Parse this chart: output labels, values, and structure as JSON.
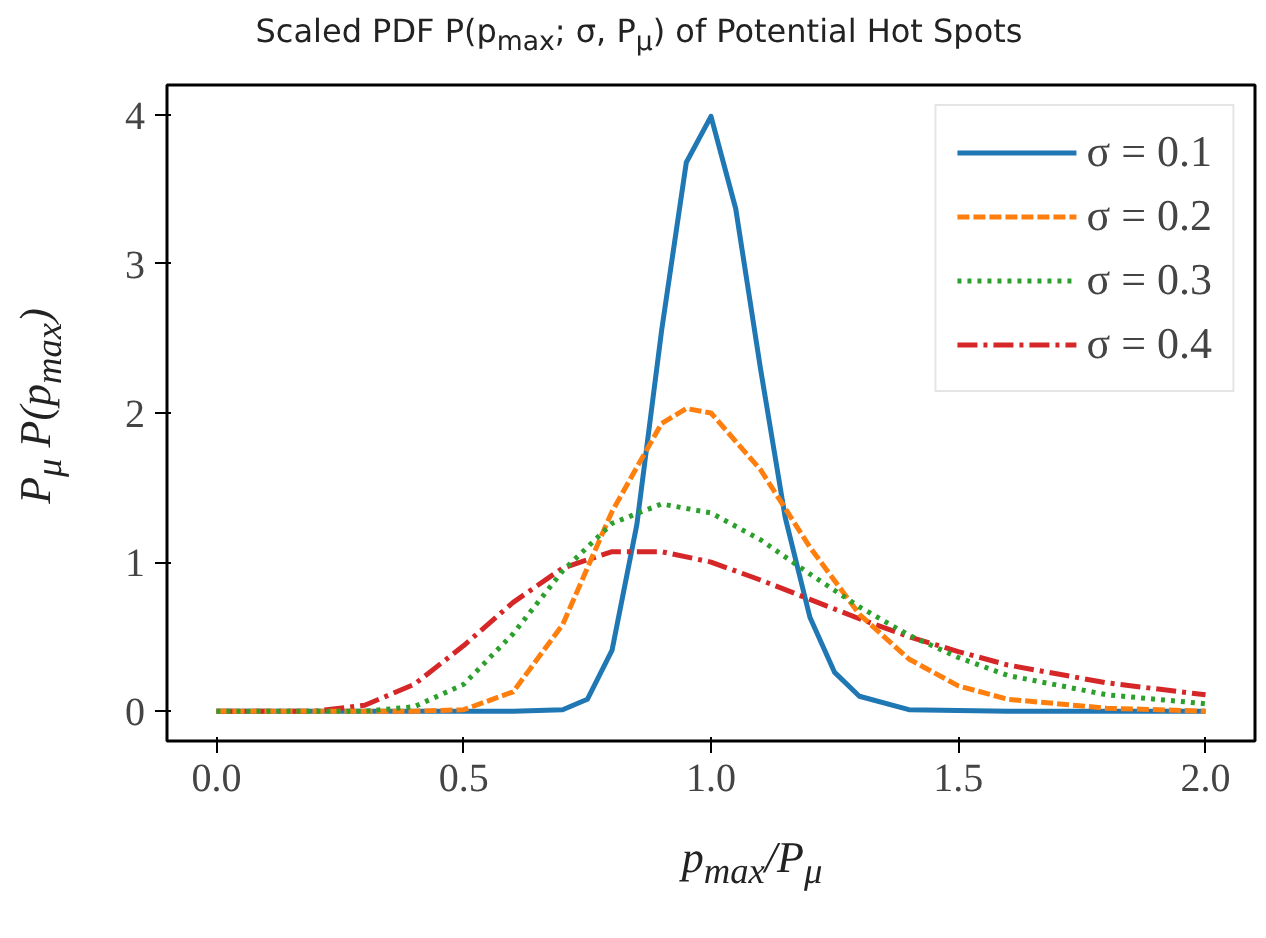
{
  "chart_data": {
    "type": "line",
    "title": "Scaled PDF P(p$_{max}$; σ, P$_{μ}$) of Potential Hot Spots",
    "xlabel": "p$_{max}$/P$_{μ}$",
    "ylabel": "P$_{μ}$ P(p$_{max}$)",
    "xlim": [
      -0.1,
      2.1
    ],
    "ylim": [
      -0.2,
      4.2
    ],
    "xticks": [
      {
        "value": 0,
        "label": "0.0"
      },
      {
        "value": 0.5,
        "label": "0.5"
      },
      {
        "value": 1,
        "label": "1.0"
      },
      {
        "value": 1.5,
        "label": "1.5"
      },
      {
        "value": 2,
        "label": "2.0"
      }
    ],
    "yticks": [
      0,
      1,
      2,
      3,
      4
    ],
    "grid": false,
    "legend": "top right",
    "series": [
      {
        "name": "σ = 0.1",
        "color": "#1f77b4",
        "line_style": "solid",
        "x": [
          0,
          0.6,
          0.7,
          0.75,
          0.8,
          0.85,
          0.9,
          0.95,
          1.0,
          1.05,
          1.1,
          1.15,
          1.2,
          1.25,
          1.3,
          1.4,
          1.6,
          2.0
        ],
        "values": [
          0,
          0,
          0.01,
          0.08,
          0.41,
          1.25,
          2.55,
          3.68,
          3.99,
          3.37,
          2.3,
          1.3,
          0.63,
          0.26,
          0.1,
          0.01,
          0,
          0
        ]
      },
      {
        "name": "σ = 0.2",
        "color": "#ff7f0e",
        "line_style": "dashed",
        "x": [
          0,
          0.4,
          0.5,
          0.6,
          0.7,
          0.8,
          0.9,
          0.95,
          1.0,
          1.1,
          1.2,
          1.3,
          1.4,
          1.5,
          1.6,
          1.8,
          2.0
        ],
        "values": [
          0,
          0,
          0.01,
          0.13,
          0.58,
          1.34,
          1.93,
          2.03,
          2.0,
          1.62,
          1.1,
          0.65,
          0.35,
          0.17,
          0.08,
          0.02,
          0
        ]
      },
      {
        "name": "σ = 0.3",
        "color": "#2ca02c",
        "line_style": "dotted",
        "x": [
          0,
          0.3,
          0.4,
          0.5,
          0.6,
          0.7,
          0.8,
          0.9,
          1.0,
          1.1,
          1.2,
          1.3,
          1.4,
          1.5,
          1.6,
          1.8,
          2.0
        ],
        "values": [
          0,
          0,
          0.03,
          0.18,
          0.52,
          0.94,
          1.26,
          1.39,
          1.33,
          1.15,
          0.92,
          0.7,
          0.51,
          0.36,
          0.24,
          0.11,
          0.05
        ]
      },
      {
        "name": "σ = 0.4",
        "color": "#d62728",
        "line_style": "dashdot",
        "x": [
          0,
          0.2,
          0.3,
          0.4,
          0.5,
          0.6,
          0.7,
          0.8,
          0.9,
          1.0,
          1.1,
          1.2,
          1.3,
          1.4,
          1.5,
          1.6,
          1.8,
          2.0
        ],
        "values": [
          0,
          0,
          0.04,
          0.18,
          0.44,
          0.73,
          0.96,
          1.07,
          1.07,
          1.0,
          0.88,
          0.75,
          0.62,
          0.5,
          0.4,
          0.31,
          0.19,
          0.11
        ]
      }
    ]
  }
}
